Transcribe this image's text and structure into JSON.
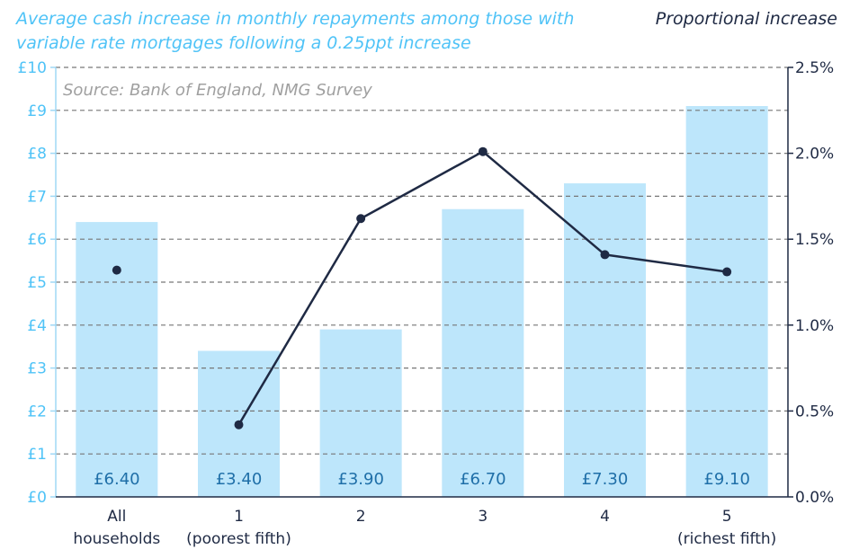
{
  "title_left": "Average cash increase in monthly repayments among those with variable rate mortgages following a 0.25ppt increase",
  "title_right": "Proportional increase",
  "source": "Source: Bank of England, NMG Survey",
  "colors": {
    "bar": "#bde6fb",
    "line": "#1f2a44",
    "grid": "#777777",
    "left_axis_text": "#4fc3f7",
    "label_text": "#1f6fa8"
  },
  "chart_data": {
    "type": "bar",
    "categories": [
      [
        "All",
        "households"
      ],
      [
        "1",
        "(poorest fifth)"
      ],
      [
        "2"
      ],
      [
        "3"
      ],
      [
        "4"
      ],
      [
        "5",
        "(richest fifth)"
      ]
    ],
    "bar_values": [
      6.4,
      3.4,
      3.9,
      6.7,
      7.3,
      9.1
    ],
    "bar_labels": [
      "£6.40",
      "£3.40",
      "£3.90",
      "£6.70",
      "£7.30",
      "£9.10"
    ],
    "line_values": [
      1.32,
      0.42,
      1.62,
      2.01,
      1.41,
      1.31
    ],
    "line_connected_from_index": 1,
    "y_left": {
      "min": 0,
      "max": 10,
      "ticks": [
        "£0",
        "£1",
        "£2",
        "£3",
        "£4",
        "£5",
        "£6",
        "£7",
        "£8",
        "£9",
        "£10"
      ]
    },
    "y_right": {
      "min": 0,
      "max": 2.5,
      "ticks": [
        "0.0%",
        "0.5%",
        "1.0%",
        "1.5%",
        "2.0%",
        "2.5%"
      ]
    },
    "grid": true
  }
}
